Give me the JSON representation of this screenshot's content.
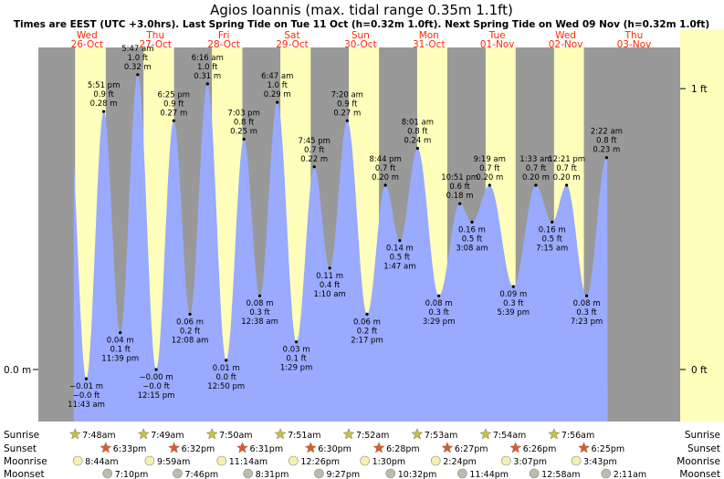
{
  "title": "Agios Ioannis (max. tidal range 0.35m 1.1ft)",
  "subtitle": "Times are EEST (UTC +3.0hrs). Last Spring Tide on Tue 11 Oct (h=0.32m 1.0ft). Next Spring Tide on Wed 09 Nov (h=0.32m 1.0ft)",
  "colors": {
    "night": "#999999",
    "day": "#ffffbb",
    "tide": "#99aaff",
    "day_label": "#ff2a00",
    "sunrise_icon": "#c8c040",
    "sunset_icon": "#e05a28",
    "moonrise_icon": "#f4f0b0",
    "moonset_icon": "#bcbcac"
  },
  "icons": {
    "sunrise": "star-icon",
    "sunset": "star-icon",
    "moonrise": "moon-disc-icon",
    "moonset": "moon-disc-icon"
  },
  "days": [
    {
      "dow": "Wed",
      "date": "26-Oct"
    },
    {
      "dow": "Thu",
      "date": "27-Oct"
    },
    {
      "dow": "Fri",
      "date": "28-Oct"
    },
    {
      "dow": "Sat",
      "date": "29-Oct"
    },
    {
      "dow": "Sun",
      "date": "30-Oct"
    },
    {
      "dow": "Mon",
      "date": "31-Oct"
    },
    {
      "dow": "Tue",
      "date": "01-Nov"
    },
    {
      "dow": "Wed",
      "date": "02-Nov"
    },
    {
      "dow": "Thu",
      "date": "03-Nov"
    }
  ],
  "chart_data": {
    "type": "area",
    "x_unit": "hours from 26-Oct 00:00 EEST",
    "y_unit": "m",
    "ylim_m": [
      -0.07,
      0.35
    ],
    "left_axis_labels": [
      "0.0 m"
    ],
    "right_axis_labels": [
      {
        "label": "1 ft",
        "ft": 1
      },
      {
        "label": "0 ft",
        "ft": 0
      }
    ],
    "tides": [
      {
        "t": 11.72,
        "h": -0.01,
        "time": "11:43 am",
        "m": "−0.01 m",
        "ft": "−0.0 ft",
        "kind": "low"
      },
      {
        "t": 17.85,
        "h": 0.28,
        "time": "5:51 pm",
        "m": "0.28 m",
        "ft": "0.9 ft",
        "kind": "high"
      },
      {
        "t": 23.65,
        "h": 0.04,
        "time": "11:39 pm",
        "m": "0.04 m",
        "ft": "0.1 ft",
        "kind": "low"
      },
      {
        "t": 29.78,
        "h": 0.32,
        "time": "5:47 am",
        "m": "0.32 m",
        "ft": "1.0 ft",
        "kind": "high"
      },
      {
        "t": 36.25,
        "h": 0.0,
        "time": "12:15 pm",
        "m": "−0.00 m",
        "ft": "−0.0 ft",
        "kind": "low"
      },
      {
        "t": 42.42,
        "h": 0.27,
        "time": "6:25 pm",
        "m": "0.27 m",
        "ft": "0.9 ft",
        "kind": "high"
      },
      {
        "t": 48.13,
        "h": 0.06,
        "time": "12:08 am",
        "m": "0.06 m",
        "ft": "0.2 ft",
        "kind": "low"
      },
      {
        "t": 54.27,
        "h": 0.31,
        "time": "6:16 am",
        "m": "0.31 m",
        "ft": "1.0 ft",
        "kind": "high"
      },
      {
        "t": 60.83,
        "h": 0.01,
        "time": "12:50 pm",
        "m": "0.01 m",
        "ft": "0.0 ft",
        "kind": "low"
      },
      {
        "t": 67.05,
        "h": 0.25,
        "time": "7:03 pm",
        "m": "0.25 m",
        "ft": "0.8 ft",
        "kind": "high"
      },
      {
        "t": 72.63,
        "h": 0.08,
        "time": "12:38 am",
        "m": "0.08 m",
        "ft": "0.3 ft",
        "kind": "low"
      },
      {
        "t": 78.78,
        "h": 0.29,
        "time": "6:47 am",
        "m": "0.29 m",
        "ft": "1.0 ft",
        "kind": "high"
      },
      {
        "t": 85.48,
        "h": 0.03,
        "time": "1:29 pm",
        "m": "0.03 m",
        "ft": "0.1 ft",
        "kind": "low"
      },
      {
        "t": 91.75,
        "h": 0.22,
        "time": "7:45 pm",
        "m": "0.22 m",
        "ft": "0.7 ft",
        "kind": "high"
      },
      {
        "t": 97.17,
        "h": 0.11,
        "time": "1:10 am",
        "m": "0.11 m",
        "ft": "0.4 ft",
        "kind": "low"
      },
      {
        "t": 103.33,
        "h": 0.27,
        "time": "7:20 am",
        "m": "0.27 m",
        "ft": "0.9 ft",
        "kind": "high"
      },
      {
        "t": 110.28,
        "h": 0.06,
        "time": "2:17 pm",
        "m": "0.06 m",
        "ft": "0.2 ft",
        "kind": "low"
      },
      {
        "t": 116.73,
        "h": 0.2,
        "time": "8:44 pm",
        "m": "0.20 m",
        "ft": "0.7 ft",
        "kind": "high"
      },
      {
        "t": 121.78,
        "h": 0.14,
        "time": "1:47 am",
        "m": "0.14 m",
        "ft": "0.5 ft",
        "kind": "low"
      },
      {
        "t": 128.02,
        "h": 0.24,
        "time": "8:01 am",
        "m": "0.24 m",
        "ft": "0.8 ft",
        "kind": "high"
      },
      {
        "t": 135.48,
        "h": 0.08,
        "time": "3:29 pm",
        "m": "0.08 m",
        "ft": "0.3 ft",
        "kind": "low"
      },
      {
        "t": 142.85,
        "h": 0.18,
        "time": "10:51 pm",
        "m": "0.18 m",
        "ft": "0.6 ft",
        "kind": "high"
      },
      {
        "t": 147.13,
        "h": 0.16,
        "time": "3:08 am",
        "m": "0.16 m",
        "ft": "0.5 ft",
        "kind": "low"
      },
      {
        "t": 153.32,
        "h": 0.2,
        "time": "9:19 am",
        "m": "0.20 m",
        "ft": "0.7 ft",
        "kind": "high"
      },
      {
        "t": 161.65,
        "h": 0.09,
        "time": "5:39 pm",
        "m": "0.09 m",
        "ft": "0.3 ft",
        "kind": "low"
      },
      {
        "t": 169.55,
        "h": 0.2,
        "time": "1:33 am",
        "m": "0.20 m",
        "ft": "0.7 ft",
        "kind": "high"
      },
      {
        "t": 175.25,
        "h": 0.16,
        "time": "7:15 am",
        "m": "0.16 m",
        "ft": "0.5 ft",
        "kind": "low"
      },
      {
        "t": 180.35,
        "h": 0.2,
        "time": "12:21 pm",
        "m": "0.20 m",
        "ft": "0.7 ft",
        "kind": "high"
      },
      {
        "t": 187.38,
        "h": 0.08,
        "time": "7:23 pm",
        "m": "0.08 m",
        "ft": "0.3 ft",
        "kind": "low"
      },
      {
        "t": 194.37,
        "h": 0.23,
        "time": "2:22 am",
        "m": "0.23 m",
        "ft": "0.8 ft",
        "kind": "high"
      }
    ]
  },
  "rows": {
    "sunrise": {
      "label": "Sunrise",
      "times": [
        "7:48am",
        "7:49am",
        "7:50am",
        "7:51am",
        "7:52am",
        "7:53am",
        "7:54am",
        "7:56am"
      ]
    },
    "sunset": {
      "label": "Sunset",
      "times": [
        "6:33pm",
        "6:32pm",
        "6:31pm",
        "6:30pm",
        "6:28pm",
        "6:27pm",
        "6:26pm",
        "6:25pm"
      ]
    },
    "moonrise": {
      "label": "Moonrise",
      "times": [
        "8:44am",
        "9:59am",
        "11:14am",
        "12:26pm",
        "1:30pm",
        "2:24pm",
        "3:07pm",
        "3:43pm"
      ]
    },
    "moonset": {
      "label": "Moonset",
      "times": [
        "7:10pm",
        "7:46pm",
        "8:31pm",
        "9:27pm",
        "10:32pm",
        "11:44pm",
        "12:58am",
        "2:11am"
      ]
    }
  }
}
